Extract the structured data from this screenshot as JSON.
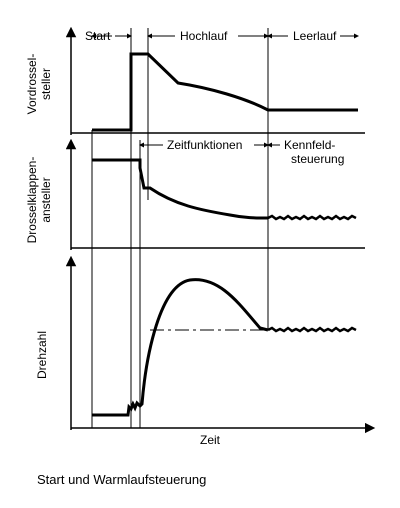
{
  "phases": {
    "start": "Start",
    "hochlauf": "Hochlauf",
    "leerlauf": "Leerlauf",
    "zeitfunktionen": "Zeitfunktionen",
    "kennfeld_line1": "Kennfeld-",
    "kennfeld_line2": "steuerung"
  },
  "axes": {
    "vordrossel_line1": "Vordrossel-",
    "vordrossel_line2": "steller",
    "drosselklappen_line1": "Drosselklappen-",
    "drosselklappen_line2": "ansteller",
    "drehzahl": "Drehzahl",
    "zeit": "Zeit"
  },
  "caption": "Start und Warmlaufsteuerung"
}
